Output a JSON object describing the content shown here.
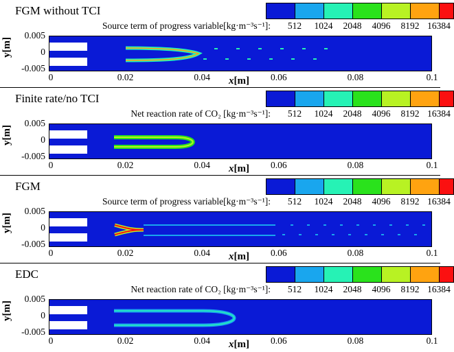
{
  "colorbar": {
    "colors": [
      "#0a1ad6",
      "#19a6ee",
      "#26f2b5",
      "#2ae21c",
      "#b8f223",
      "#ffa310",
      "#fb1010"
    ],
    "ticks": [
      "512",
      "1024",
      "2048",
      "4096",
      "8192",
      "16384"
    ]
  },
  "axes": {
    "y_label": "y[m]",
    "x_label_var": "x",
    "x_label_unit": "[m]",
    "y_ticks": [
      "0.005",
      "0",
      "-0.005"
    ],
    "x_ticks": [
      "0",
      "0.02",
      "0.04",
      "0.06",
      "0.08",
      "0.1"
    ]
  },
  "panels": [
    {
      "title": "FGM without TCI",
      "label": "Source term of progress variable[kg·m⁻³s⁻¹]:"
    },
    {
      "title": "Finite rate/no TCI",
      "label": "Net reaction rate of CO₂ [kg·m⁻³s⁻¹]:"
    },
    {
      "title": "FGM",
      "label": "Source term of progress variable[kg·m⁻³s⁻¹]:"
    },
    {
      "title": "EDC",
      "label": "Net reaction rate of CO₂ [kg·m⁻³s⁻¹]:"
    }
  ]
}
